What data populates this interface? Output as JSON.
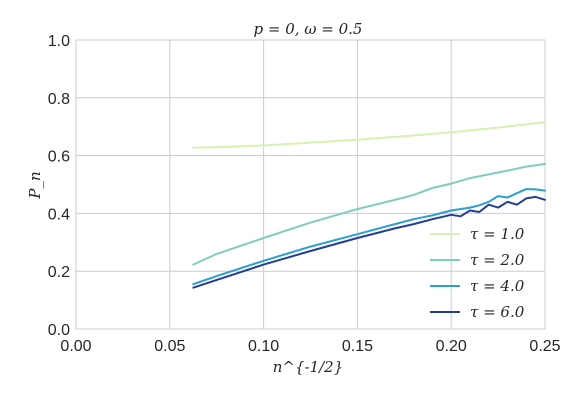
{
  "chart_data": {
    "type": "line",
    "title": "p = 0, ω = 0.5",
    "xlabel": "n^{-1/2}",
    "ylabel": "P_n",
    "xlim": [
      0.0,
      0.25
    ],
    "ylim": [
      0.0,
      1.0
    ],
    "xticks": [
      "0.00",
      "0.05",
      "0.10",
      "0.15",
      "0.20",
      "0.25"
    ],
    "yticks": [
      "0.0",
      "0.2",
      "0.4",
      "0.6",
      "0.8",
      "1.0"
    ],
    "grid": true,
    "legend_position": "bottom-right",
    "series": [
      {
        "name": "τ = 1.0",
        "color": "#d9f0b3",
        "x": [
          0.0625,
          0.075,
          0.1,
          0.125,
          0.15,
          0.175,
          0.2,
          0.225,
          0.25
        ],
        "y": [
          0.627,
          0.629,
          0.635,
          0.645,
          0.655,
          0.667,
          0.681,
          0.697,
          0.716
        ]
      },
      {
        "name": "τ = 2.0",
        "color": "#7fcdbb",
        "x": [
          0.0625,
          0.075,
          0.1,
          0.125,
          0.15,
          0.175,
          0.18,
          0.19,
          0.2,
          0.21,
          0.22,
          0.23,
          0.24,
          0.25
        ],
        "y": [
          0.223,
          0.26,
          0.315,
          0.368,
          0.415,
          0.455,
          0.464,
          0.488,
          0.503,
          0.522,
          0.535,
          0.548,
          0.562,
          0.571
        ]
      },
      {
        "name": "τ = 4.0",
        "color": "#2c9fcf",
        "x": [
          0.0625,
          0.075,
          0.1,
          0.125,
          0.15,
          0.17,
          0.18,
          0.19,
          0.2,
          0.21,
          0.215,
          0.22,
          0.225,
          0.23,
          0.235,
          0.24,
          0.245,
          0.25
        ],
        "y": [
          0.155,
          0.183,
          0.236,
          0.285,
          0.328,
          0.363,
          0.38,
          0.393,
          0.41,
          0.42,
          0.428,
          0.44,
          0.46,
          0.455,
          0.47,
          0.484,
          0.483,
          0.479
        ]
      },
      {
        "name": "τ = 6.0",
        "color": "#253e92",
        "x": [
          0.0625,
          0.075,
          0.1,
          0.125,
          0.15,
          0.17,
          0.18,
          0.19,
          0.2,
          0.205,
          0.21,
          0.215,
          0.22,
          0.225,
          0.23,
          0.235,
          0.24,
          0.245,
          0.25
        ],
        "y": [
          0.143,
          0.17,
          0.223,
          0.27,
          0.315,
          0.348,
          0.363,
          0.38,
          0.395,
          0.39,
          0.41,
          0.405,
          0.43,
          0.42,
          0.44,
          0.43,
          0.452,
          0.457,
          0.447
        ]
      }
    ]
  }
}
